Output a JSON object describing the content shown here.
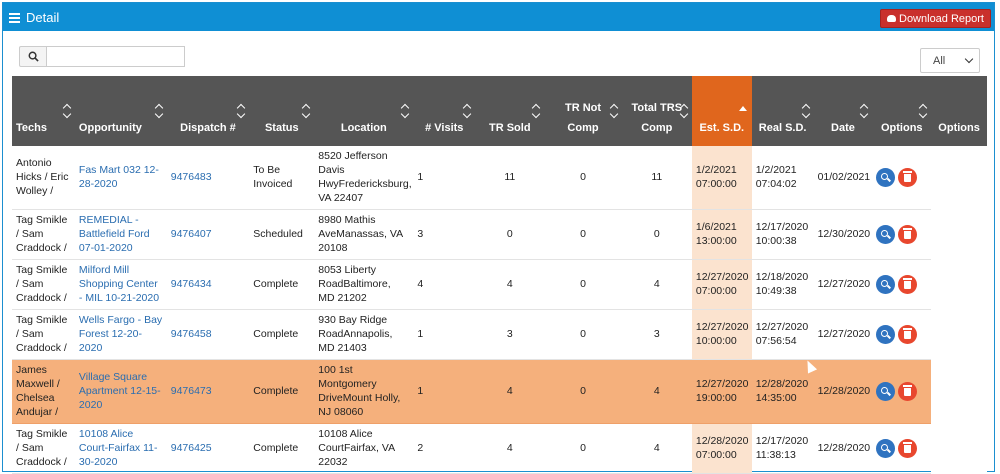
{
  "header": {
    "title": "Detail",
    "download_label": "Download Report"
  },
  "toolbar": {
    "search_value": "",
    "filter_value": "All"
  },
  "columns": [
    "Techs",
    "Opportunity",
    "Dispatch #",
    "Status",
    "Location",
    "# Visits",
    "TR Sold",
    "TR Not Comp",
    "Total TRS Comp",
    "Est. S.D.",
    "Real S.D.",
    "Date",
    "Options",
    "Options"
  ],
  "rows": [
    {
      "techs": "Antonio Hicks / Eric Wolley /",
      "opportunity": "Fas Mart 032 12-28-2020",
      "dispatch": "9476483",
      "status": "To Be Invoiced",
      "location": "8520 Jefferson Davis HwyFredericksburg, VA 22407",
      "visits": "1",
      "tr_sold": "11",
      "tr_not_comp": "0",
      "total_trs_comp": "11",
      "est_sd": "1/2/2021 07:00:00",
      "real_sd": "1/2/2021 07:04:02",
      "date": "01/02/2021"
    },
    {
      "techs": "Tag Smikle / Sam Craddock /",
      "opportunity": "REMEDIAL - Battlefield Ford 07-01-2020",
      "dispatch": "9476407",
      "status": "Scheduled",
      "location": "8980 Mathis AveManassas, VA 20108",
      "visits": "3",
      "tr_sold": "0",
      "tr_not_comp": "0",
      "total_trs_comp": "0",
      "est_sd": "1/6/2021 13:00:00",
      "real_sd": "12/17/2020 10:00:38",
      "date": "12/30/2020"
    },
    {
      "techs": "Tag Smikle / Sam Craddock /",
      "opportunity": "Milford Mill Shopping Center - MIL 10-21-2020",
      "dispatch": "9476434",
      "status": "Complete",
      "location": "8053 Liberty RoadBaltimore, MD 21202",
      "visits": "4",
      "tr_sold": "4",
      "tr_not_comp": "0",
      "total_trs_comp": "4",
      "est_sd": "12/27/2020 07:00:00",
      "real_sd": "12/18/2020 10:49:38",
      "date": "12/27/2020"
    },
    {
      "techs": "Tag Smikle / Sam Craddock /",
      "opportunity": "Wells Fargo - Bay Forest 12-20-2020",
      "dispatch": "9476458",
      "status": "Complete",
      "location": "930 Bay Ridge RoadAnnapolis, MD 21403",
      "visits": "1",
      "tr_sold": "3",
      "tr_not_comp": "0",
      "total_trs_comp": "3",
      "est_sd": "12/27/2020 10:00:00",
      "real_sd": "12/27/2020 07:56:54",
      "date": "12/27/2020"
    },
    {
      "techs": "James Maxwell / Chelsea Andujar /",
      "opportunity": "Village Square Apartment 12-15-2020",
      "dispatch": "9476473",
      "status": "Complete",
      "location": "100 1st Montgomery DriveMount Holly, NJ 08060",
      "visits": "1",
      "tr_sold": "4",
      "tr_not_comp": "0",
      "total_trs_comp": "4",
      "est_sd": "12/27/2020 19:00:00",
      "real_sd": "12/28/2020 14:35:00",
      "date": "12/28/2020"
    },
    {
      "techs": "Tag Smikle / Sam Craddock /",
      "opportunity": "10108 Alice Court-Fairfax 11-30-2020",
      "dispatch": "9476425",
      "status": "Complete",
      "location": "10108 Alice CourtFairfax, VA 22032",
      "visits": "2",
      "tr_sold": "4",
      "tr_not_comp": "0",
      "total_trs_comp": "4",
      "est_sd": "12/28/2020 07:00:00",
      "real_sd": "12/17/2020 11:38:13",
      "date": "12/28/2020"
    }
  ],
  "colors": {
    "header_bar": "#0f8fd4",
    "download": "#c9302c",
    "table_header": "#555555",
    "sorted_column": "#e0661d",
    "highlight_row": "#f5b07c",
    "view_button": "#2f73c0",
    "delete_button": "#e8472e"
  },
  "icons": {
    "menu": "list-icon",
    "download": "cloud-download-icon",
    "search": "search-icon",
    "view": "magnifier-icon",
    "delete": "trash-icon"
  }
}
